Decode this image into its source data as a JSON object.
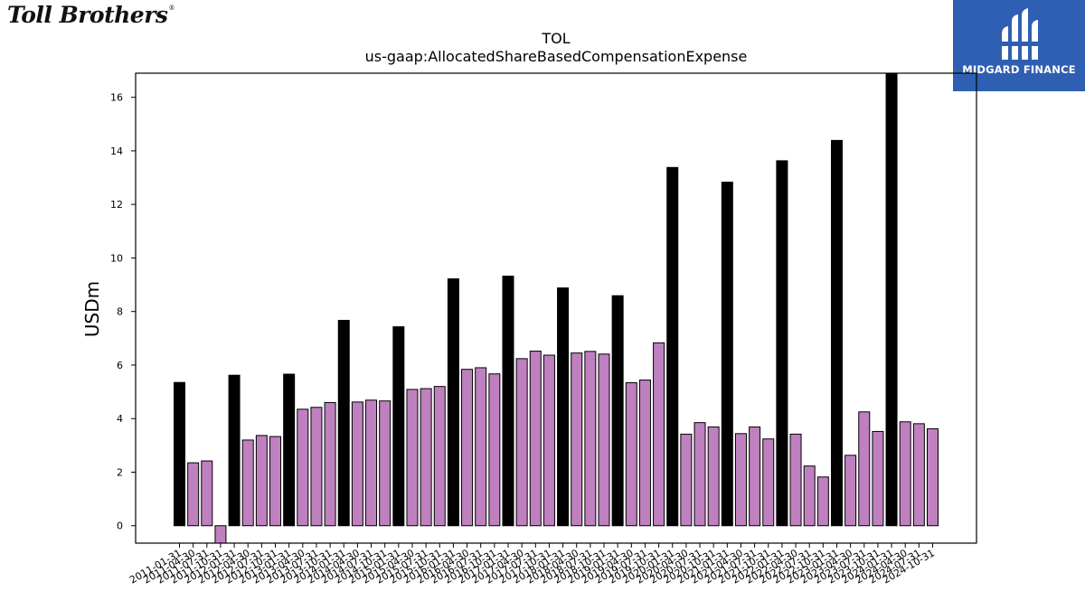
{
  "brand": {
    "name": "Toll Brothers",
    "registered": "®"
  },
  "badge": {
    "text": "MIDGARD FINANCE",
    "color": "#2f5fb3"
  },
  "chart_data": {
    "type": "bar",
    "title": "TOL",
    "subtitle": "us-gaap:AllocatedShareBasedCompensationExpense",
    "xlabel": "",
    "ylabel": "USDm",
    "ylim": [
      -0.65,
      16.9
    ],
    "yticks": [
      0,
      2,
      4,
      6,
      8,
      10,
      12,
      14,
      16
    ],
    "grid": false,
    "colors": {
      "annual": "#000000",
      "quarterly": "#bf80bf"
    },
    "categories": [
      "2011-01-31",
      "2011-04-30",
      "2011-07-31",
      "2011-10-31",
      "2012-01-31",
      "2012-04-30",
      "2012-07-31",
      "2012-10-31",
      "2013-01-31",
      "2013-04-30",
      "2013-07-31",
      "2013-10-31",
      "2014-01-31",
      "2014-04-30",
      "2014-07-31",
      "2014-10-31",
      "2015-01-31",
      "2015-04-30",
      "2015-07-31",
      "2015-10-31",
      "2016-01-31",
      "2016-04-30",
      "2016-07-31",
      "2016-10-31",
      "2017-01-31",
      "2017-04-30",
      "2017-07-31",
      "2017-10-31",
      "2018-01-31",
      "2018-04-30",
      "2018-07-31",
      "2018-10-31",
      "2019-01-31",
      "2019-04-30",
      "2019-07-31",
      "2019-10-31",
      "2020-01-31",
      "2020-04-30",
      "2020-07-31",
      "2020-10-31",
      "2021-01-31",
      "2021-04-30",
      "2021-07-31",
      "2021-10-31",
      "2022-01-31",
      "2022-04-30",
      "2022-07-31",
      "2022-10-31",
      "2023-01-31",
      "2023-04-30",
      "2023-07-31",
      "2023-10-31",
      "2024-01-31",
      "2024-04-30",
      "2024-07-31",
      "2024-10-31"
    ],
    "values": [
      5.35,
      2.35,
      2.42,
      -0.65,
      5.62,
      3.2,
      3.37,
      3.33,
      5.66,
      4.35,
      4.42,
      4.6,
      7.67,
      4.62,
      4.69,
      4.66,
      7.43,
      5.09,
      5.12,
      5.2,
      9.22,
      5.84,
      5.9,
      5.67,
      9.32,
      6.24,
      6.52,
      6.37,
      8.88,
      6.45,
      6.51,
      6.41,
      8.59,
      5.34,
      5.44,
      6.83,
      13.38,
      3.42,
      3.85,
      3.69,
      12.83,
      3.44,
      3.69,
      3.24,
      13.63,
      3.42,
      2.23,
      1.82,
      14.39,
      2.63,
      4.25,
      3.52,
      16.9,
      3.88,
      3.81,
      3.62
    ],
    "annual_flags": [
      1,
      0,
      0,
      0,
      1,
      0,
      0,
      0,
      1,
      0,
      0,
      0,
      1,
      0,
      0,
      0,
      1,
      0,
      0,
      0,
      1,
      0,
      0,
      0,
      1,
      0,
      0,
      0,
      1,
      0,
      0,
      0,
      1,
      0,
      0,
      0,
      1,
      0,
      0,
      0,
      1,
      0,
      0,
      0,
      1,
      0,
      0,
      0,
      1,
      0,
      0,
      0,
      1,
      0,
      0,
      0
    ]
  }
}
